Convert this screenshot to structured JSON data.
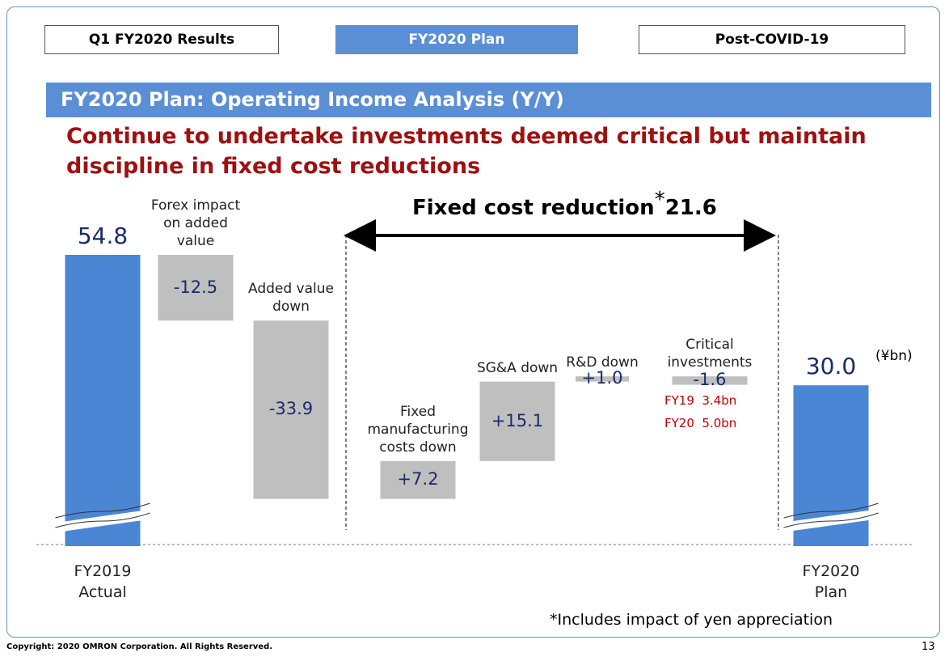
{
  "tabs": [
    "Q1 FY2020 Results",
    "FY2020 Plan",
    "Post-COVID-19"
  ],
  "header": "FY2020 Plan: Operating Income Analysis (Y/Y)",
  "headline": "Continue to undertake investments deemed critical but maintain discipline in fixed cost reductions",
  "chart_data": {
    "type": "waterfall",
    "categories": [
      "FY2019 Actual",
      "Forex impact on added value",
      "Added value down",
      "Fixed manufacturing costs down",
      "SG&A down",
      "R&D down",
      "Critical investments",
      "FY2020 Plan"
    ],
    "values": [
      54.8,
      -12.5,
      -33.9,
      7.2,
      15.1,
      1.0,
      -1.6,
      30.0
    ],
    "value_labels": [
      "54.8",
      "-12.5",
      "-33.9",
      "+7.2",
      "+15.1",
      "+1.0",
      "-1.6",
      "30.0"
    ],
    "colors": [
      "#4a86d4",
      "#bfbfbf",
      "#bfbfbf",
      "#bfbfbf",
      "#bfbfbf",
      "#bfbfbf",
      "#bfbfbf",
      "#4a86d4"
    ],
    "unit": "(¥bn)",
    "bracket": {
      "text": "Fixed cost reduction",
      "mark": "*",
      "value": 21.6
    },
    "notes": [
      "FY19  3.4bn",
      "FY20  5.0bn"
    ],
    "footnote": "*Includes impact of yen appreciation"
  },
  "footer": {
    "copyright": "Copyright: 2020 OMRON Corporation. All Rights Reserved.",
    "page": "13"
  }
}
